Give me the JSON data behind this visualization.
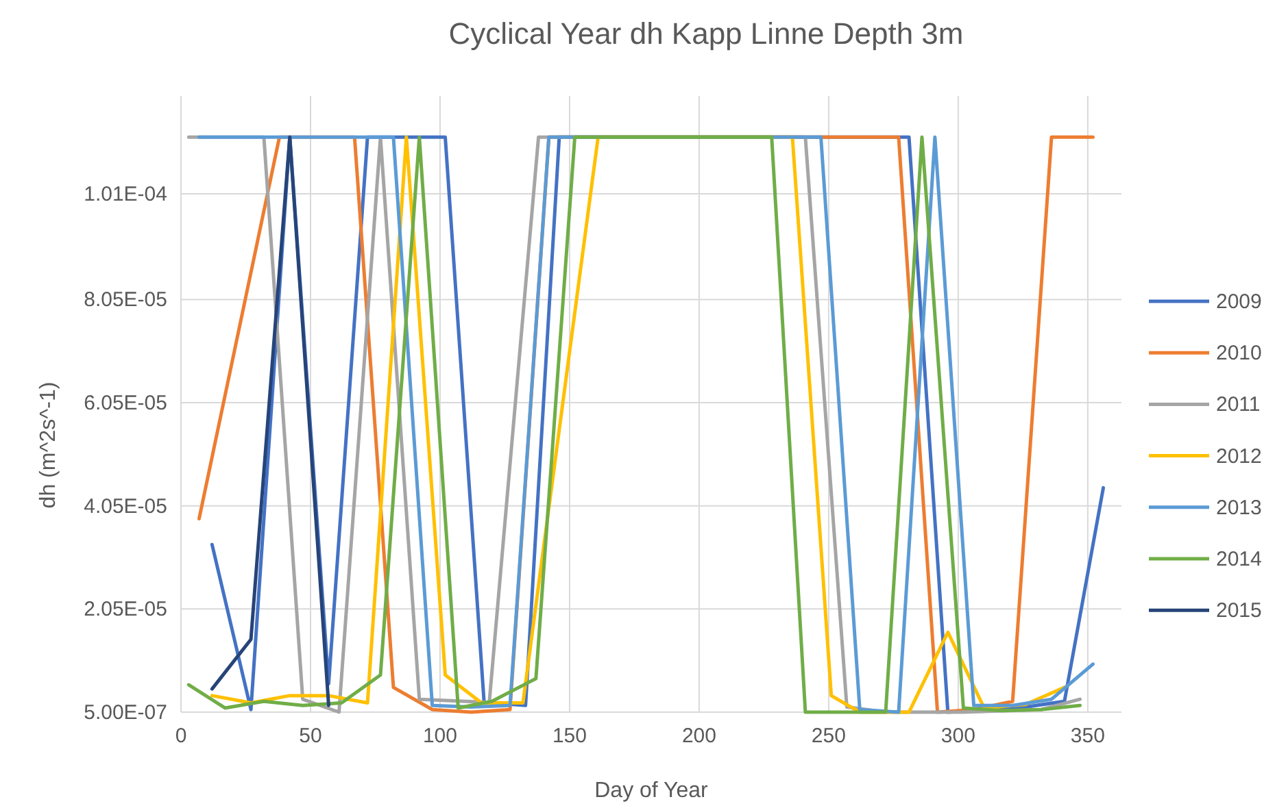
{
  "chart_data": {
    "type": "line",
    "title": "Cyclical Year dh Kapp Linne Depth 3m",
    "xlabel": "Day of Year",
    "ylabel": "dh (m^2s^-1)",
    "xlim": [
      0,
      363
    ],
    "xticks": [
      0,
      50,
      100,
      150,
      200,
      250,
      300,
      350
    ],
    "ylim": [
      5e-07,
      0.00012
    ],
    "yticks": [
      {
        "value": 5e-07,
        "label": "5.00E-07"
      },
      {
        "value": 2.05e-05,
        "label": "2.05E-05"
      },
      {
        "value": 4.05e-05,
        "label": "4.05E-05"
      },
      {
        "value": 6.05e-05,
        "label": "6.05E-05"
      },
      {
        "value": 8.05e-05,
        "label": "8.05E-05"
      },
      {
        "value": 0.000101,
        "label": "1.01E-04"
      }
    ],
    "grid": true,
    "legend": "right",
    "marker": "none",
    "line_style": "solid",
    "series": [
      {
        "name": "2009",
        "color": "#4472c4",
        "x": [
          12,
          27,
          42,
          57,
          72,
          102,
          117,
          133,
          146,
          281,
          296,
          311,
          326,
          341,
          356
        ],
        "values": [
          3.3e-05,
          1e-06,
          0.000112,
          6e-06,
          0.000112,
          0.000112,
          2.4e-06,
          1.8e-06,
          0.000112,
          0.000112,
          5e-07,
          1e-06,
          1.5e-06,
          2.6e-06,
          4.4e-05
        ]
      },
      {
        "name": "2010",
        "color": "#ed7d31",
        "x": [
          7,
          38,
          67,
          82,
          97,
          112,
          127,
          142,
          277,
          292,
          306,
          321,
          336,
          352
        ],
        "values": [
          3.8e-05,
          0.000112,
          0.000112,
          5.3e-06,
          1e-06,
          5e-07,
          1e-06,
          0.000112,
          0.000112,
          5e-07,
          1e-06,
          2.6e-06,
          0.000112,
          0.000112
        ]
      },
      {
        "name": "2011",
        "color": "#a5a5a5",
        "x": [
          3,
          32,
          47,
          61,
          77,
          92,
          119,
          138,
          241,
          257,
          272,
          302,
          332,
          347
        ],
        "values": [
          0.000112,
          0.000112,
          3e-06,
          5e-07,
          0.000112,
          3e-06,
          2.4e-06,
          0.000112,
          0.000112,
          1.5e-06,
          5e-07,
          5e-07,
          1e-06,
          3e-06
        ]
      },
      {
        "name": "2012",
        "color": "#ffc000",
        "x": [
          12,
          27,
          42,
          57,
          72,
          87,
          102,
          116,
          132,
          161,
          236,
          251,
          262,
          281,
          296,
          310,
          326,
          341
        ],
        "values": [
          3.7e-06,
          2.3e-06,
          3.7e-06,
          3.7e-06,
          2.3e-06,
          0.000112,
          7.7e-06,
          2.3e-06,
          2.3e-06,
          0.000112,
          0.000112,
          3.7e-06,
          5e-07,
          5e-07,
          1.6e-05,
          1.3e-06,
          2e-06,
          5.3e-06
        ]
      },
      {
        "name": "2013",
        "color": "#5b9bd5",
        "x": [
          7,
          82,
          97,
          112,
          127,
          142,
          247,
          262,
          277,
          291,
          306,
          321,
          336,
          352
        ],
        "values": [
          0.000112,
          0.000112,
          1.8e-06,
          1.5e-06,
          1.8e-06,
          0.000112,
          0.000112,
          1e-06,
          5e-07,
          0.000112,
          1.8e-06,
          1.8e-06,
          3e-06,
          9.8e-06
        ]
      },
      {
        "name": "2014",
        "color": "#70ad47",
        "x": [
          3,
          17,
          32,
          47,
          62,
          77,
          92,
          107,
          120,
          137,
          152,
          228,
          241,
          272,
          286,
          302,
          317,
          332,
          347
        ],
        "values": [
          5.8e-06,
          1.3e-06,
          2.6e-06,
          1.8e-06,
          2.3e-06,
          7.7e-06,
          0.000112,
          1.3e-06,
          2.6e-06,
          7e-06,
          0.000112,
          0.000112,
          5e-07,
          5e-07,
          0.000112,
          1.3e-06,
          8e-07,
          1e-06,
          1.8e-06
        ]
      },
      {
        "name": "2015",
        "color": "#264478",
        "x": [
          12,
          27,
          42,
          57
        ],
        "values": [
          5e-06,
          1.46e-05,
          0.000112,
          1.8e-06
        ]
      }
    ]
  }
}
